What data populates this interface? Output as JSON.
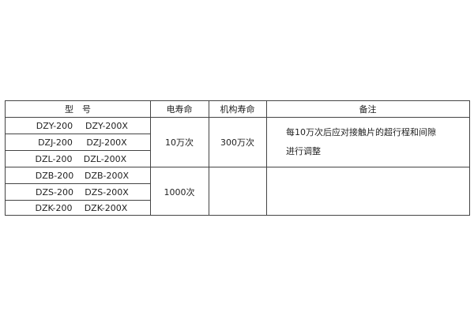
{
  "header": {
    "model": "型　号",
    "electrical_life": "电寿命",
    "mechanical_life": "机构寿命",
    "remarks": "备注"
  },
  "rows": [
    {
      "model_a": "DZY-200",
      "model_b": "DZY-200X"
    },
    {
      "model_a": "DZJ-200",
      "model_b": "DZJ-200X"
    },
    {
      "model_a": "DZL-200",
      "model_b": "DZL-200X"
    },
    {
      "model_a": "DZB-200",
      "model_b": "DZB-200X"
    },
    {
      "model_a": "DZS-200",
      "model_b": "DZS-200X"
    },
    {
      "model_a": "DZK-200",
      "model_b": "DZK-200X"
    }
  ],
  "groups": [
    {
      "electrical_life": "10万次",
      "mechanical_life": "300万次",
      "remark_line1": "每10万次后应对接触片的超行程和间隙",
      "remark_line2": "进行调整"
    },
    {
      "electrical_life": "1000次",
      "mechanical_life": "",
      "remark_line1": "",
      "remark_line2": ""
    }
  ]
}
